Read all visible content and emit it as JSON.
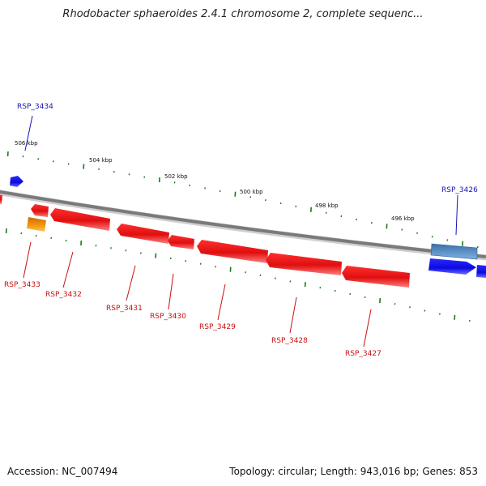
{
  "header": {
    "title": "Rhodobacter sphaeroides 2.4.1 chromosome 2, complete sequenc..."
  },
  "footer": {
    "accession": "Accession: NC_007494",
    "summary": "Topology: circular; Length: 943,016 bp; Genes: 853"
  },
  "colors": {
    "backbone": "#7a7a7a",
    "tick": "#1a7a1a",
    "forward_gene": "#1010e0",
    "reverse_gene": "#e01010",
    "other_gene": "#f08c00",
    "selected_gene": "#4a7fb0",
    "forward_label": "#1414b4",
    "reverse_label": "#c81010"
  },
  "scale_labels": [
    "506 kbp",
    "504 kbp",
    "502 kbp",
    "500 kbp",
    "498 kbp",
    "496 kbp"
  ],
  "gene_labels": {
    "forward": [
      "RSP_3434",
      "RSP_3426"
    ],
    "reverse": [
      "RSP_3433",
      "RSP_3432",
      "RSP_3431",
      "RSP_3430",
      "RSP_3429",
      "RSP_3428",
      "RSP_3427"
    ]
  }
}
